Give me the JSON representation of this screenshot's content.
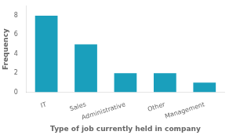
{
  "chart_data": {
    "type": "bar",
    "xlabel": "Type of job currently held in company",
    "ylabel": "Frequency",
    "categories": [
      "IT",
      "Sales",
      "Administrative",
      "Other",
      "Management"
    ],
    "values": [
      8,
      5,
      2,
      2,
      1
    ],
    "color": "#1a9fbc",
    "ylim": [
      0,
      9
    ],
    "yticks": [
      0,
      2,
      4,
      6,
      8
    ],
    "grid": false
  }
}
